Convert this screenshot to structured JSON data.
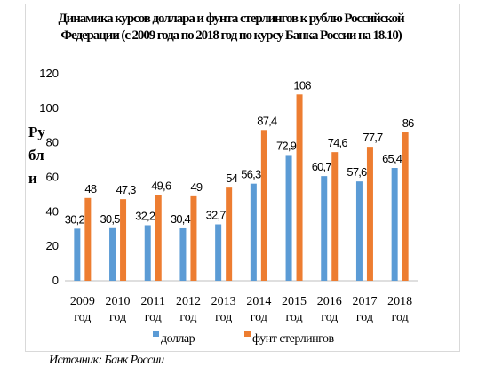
{
  "chart_data": {
    "type": "bar",
    "title": "Динамика курсов доллара и фунта стерлингов к рублю Российской Федерации (с 2009 года по 2018 год по курсу Банка России на 18.10)",
    "ylabel": "Рубли",
    "xlabel": "",
    "categories": [
      "2009 год",
      "2010 год",
      "2011 год",
      "2012 год",
      "2013 год",
      "2014 год",
      "2015 год",
      "2016 год",
      "2017 год",
      "2018 год"
    ],
    "series": [
      {
        "name": "доллар",
        "color": "#5b9bd5",
        "values": [
          30.2,
          30.5,
          32.2,
          30.4,
          32.7,
          56.3,
          72.9,
          60.7,
          57.6,
          65.4
        ],
        "labels": [
          "30,2",
          "30,5",
          "32,2",
          "30,4",
          "32,7",
          "56,3",
          "72,9",
          "60,7",
          "57,6",
          "65,4"
        ]
      },
      {
        "name": "фунт стерлингов",
        "color": "#ed7d31",
        "values": [
          48,
          47.3,
          49.6,
          49,
          54,
          87.4,
          108,
          74.6,
          77.7,
          86
        ],
        "labels": [
          "48",
          "47,3",
          "49,6",
          "49",
          "54",
          "87,4",
          "108",
          "74,6",
          "77,7",
          "86"
        ]
      }
    ],
    "ylim": [
      0,
      120
    ],
    "yticks": [
      0,
      20,
      40,
      60,
      80,
      100,
      120
    ],
    "grid": false,
    "legend": "bottom"
  },
  "source": "Источник: Банк России"
}
